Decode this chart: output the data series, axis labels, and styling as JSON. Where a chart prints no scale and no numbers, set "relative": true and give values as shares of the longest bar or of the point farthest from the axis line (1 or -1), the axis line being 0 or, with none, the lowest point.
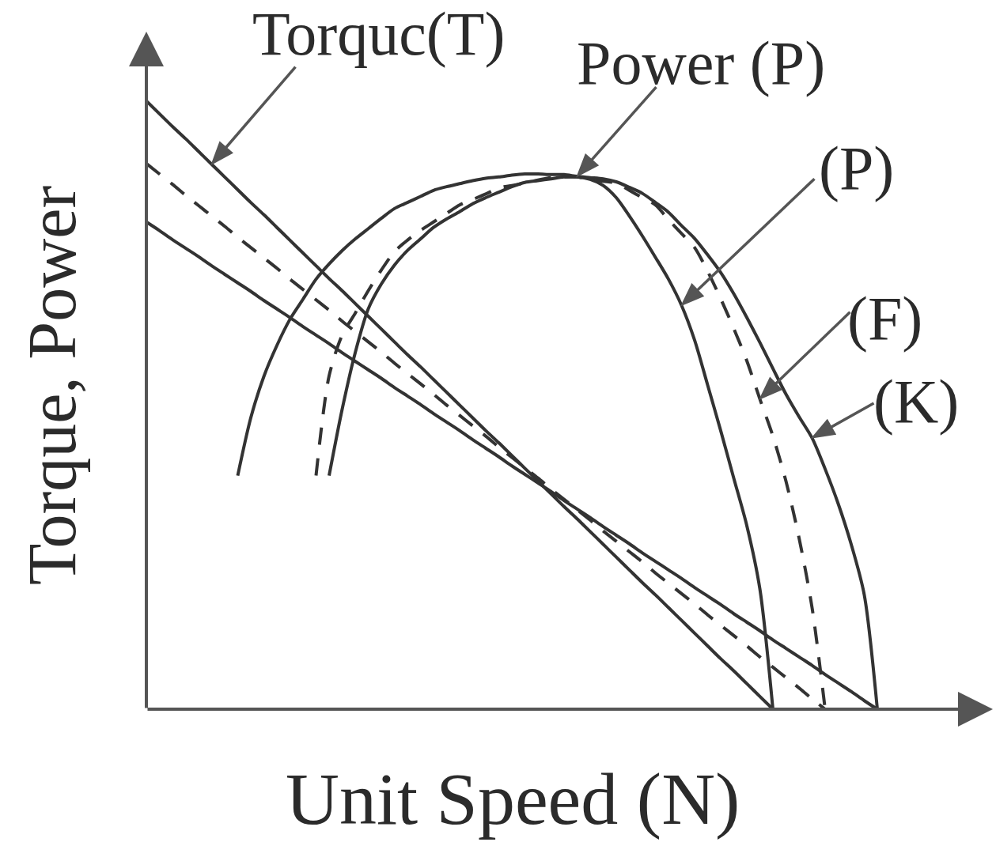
{
  "chart_data": {
    "type": "line",
    "xlabel": "Unit Speed (N)",
    "ylabel": "Torque, Power",
    "relative": true,
    "line_style": "solid",
    "annotations": [
      "Torquc(T)",
      "Power (P)"
    ],
    "categories": [
      null,
      null,
      null,
      null,
      null,
      null,
      null,
      null,
      null,
      null,
      null,
      null,
      null,
      null,
      null,
      null,
      null,
      null,
      null,
      null,
      null,
      null,
      null,
      null,
      null,
      null,
      null,
      null,
      null,
      null,
      null,
      null,
      null,
      null,
      null,
      null,
      null,
      null,
      null,
      null,
      null,
      null,
      null,
      null,
      null,
      null,
      null,
      null,
      null,
      null,
      null,
      null,
      null,
      null,
      null,
      null,
      null,
      null,
      null,
      null,
      null,
      null,
      null,
      null,
      null
    ],
    "series": [
      {
        "color": "#333333",
        "values": [
          1,
          0.979,
          0.958,
          0.938,
          0.917,
          0.896,
          0.875,
          0.854,
          0.833,
          0.813,
          0.792,
          0.771,
          0.75,
          0.729,
          0.708,
          0.688,
          0.667,
          0.646,
          0.625,
          0.604,
          0.583,
          0.563,
          0.542,
          0.521,
          0.5,
          0.479,
          0.458,
          0.438,
          0.417,
          0.396,
          0.375,
          0.354,
          0.333,
          0.313,
          0.292,
          0.271,
          0.25,
          0.229,
          0.208,
          0.188,
          0.167,
          0.146,
          0.125,
          0.104,
          0.083,
          0.063,
          0.042,
          0.021,
          0,
          null,
          null,
          null,
          null,
          null,
          null,
          null,
          null,
          null,
          null,
          null,
          null,
          null,
          null,
          null,
          null
        ]
      },
      {
        "color": "#333333",
        "line_style": "dashed",
        "values": [
          0.897,
          0.88,
          0.863,
          0.845,
          0.828,
          0.811,
          0.794,
          0.776,
          0.759,
          0.742,
          0.725,
          0.707,
          0.69,
          0.673,
          0.656,
          0.638,
          0.621,
          0.604,
          0.587,
          0.569,
          0.552,
          0.535,
          0.518,
          0.5,
          0.483,
          0.466,
          0.449,
          0.431,
          0.414,
          0.397,
          0.38,
          0.362,
          0.345,
          0.328,
          0.311,
          0.293,
          0.276,
          0.259,
          0.242,
          0.224,
          0.207,
          0.19,
          0.173,
          0.155,
          0.138,
          0.121,
          0.104,
          0.086,
          0.069,
          0.052,
          0.035,
          0.017,
          0,
          null,
          null,
          null,
          null,
          null,
          null,
          null,
          null,
          null,
          null,
          null,
          null
        ]
      },
      {
        "color": "#333333",
        "values": [
          0.801,
          0.787,
          0.772,
          0.758,
          0.744,
          0.729,
          0.715,
          0.701,
          0.687,
          0.672,
          0.658,
          0.644,
          0.629,
          0.615,
          0.601,
          0.586,
          0.572,
          0.558,
          0.544,
          0.529,
          0.515,
          0.501,
          0.486,
          0.472,
          0.458,
          0.443,
          0.429,
          0.415,
          0.4,
          0.386,
          0.372,
          0.358,
          0.343,
          0.329,
          0.315,
          0.3,
          0.286,
          0.272,
          0.257,
          0.243,
          0.229,
          0.215,
          0.2,
          0.186,
          0.172,
          0.157,
          0.143,
          0.129,
          0.114,
          0.1,
          0.086,
          0.072,
          0.057,
          0.043,
          0.029,
          0.014,
          0,
          null,
          null,
          null,
          null,
          null,
          null,
          null,
          null
        ]
      },
      {
        "name": "(P)",
        "color": "#333333",
        "values": [
          null,
          null,
          null,
          null,
          null,
          null,
          null,
          null,
          null,
          null,
          null,
          null,
          null,
          null,
          0.384,
          0.493,
          0.586,
          0.658,
          0.699,
          0.73,
          0.754,
          0.773,
          0.792,
          0.806,
          0.818,
          0.831,
          0.841,
          0.85,
          0.859,
          0.866,
          0.869,
          0.872,
          0.875,
          0.875,
          0.871,
          0.861,
          0.841,
          0.811,
          0.778,
          0.743,
          0.707,
          0.664,
          0.607,
          0.533,
          0.458,
          0.38,
          0.302,
          0.198,
          0,
          null,
          null,
          null,
          null,
          null,
          null,
          null,
          null,
          null,
          null,
          null,
          null,
          null,
          null,
          null,
          null
        ]
      },
      {
        "name": "(F)",
        "color": "#333333",
        "line_style": "dashed",
        "values": [
          null,
          null,
          null,
          null,
          null,
          null,
          null,
          null,
          null,
          null,
          null,
          null,
          null,
          0.384,
          0.548,
          0.615,
          0.651,
          0.688,
          0.722,
          0.752,
          0.771,
          0.787,
          0.801,
          0.815,
          0.829,
          0.838,
          0.847,
          0.857,
          0.861,
          0.865,
          0.87,
          0.874,
          0.875,
          0.875,
          0.871,
          0.868,
          0.865,
          0.853,
          0.841,
          0.829,
          0.805,
          0.782,
          0.759,
          0.72,
          0.675,
          0.626,
          0.573,
          0.51,
          0.449,
          0.375,
          0.282,
          0.167,
          0,
          null,
          null,
          null,
          null,
          null,
          null,
          null,
          null,
          null,
          null,
          null,
          null
        ]
      },
      {
        "name": "(K)",
        "color": "#333333",
        "values": [
          null,
          null,
          null,
          null,
          null,
          null,
          null,
          0.384,
          0.479,
          0.547,
          0.598,
          0.641,
          0.674,
          0.707,
          0.732,
          0.754,
          0.773,
          0.79,
          0.807,
          0.823,
          0.833,
          0.843,
          0.853,
          0.859,
          0.864,
          0.869,
          0.873,
          0.875,
          0.878,
          0.88,
          0.88,
          0.879,
          0.879,
          0.876,
          0.874,
          0.872,
          0.867,
          0.858,
          0.848,
          0.833,
          0.817,
          0.795,
          0.774,
          0.747,
          0.718,
          0.683,
          0.644,
          0.603,
          0.56,
          0.518,
          0.481,
          0.446,
          0.395,
          0.338,
          0.271,
          0.188,
          0,
          null,
          null,
          null,
          null,
          null,
          null,
          null,
          null
        ]
      }
    ]
  }
}
